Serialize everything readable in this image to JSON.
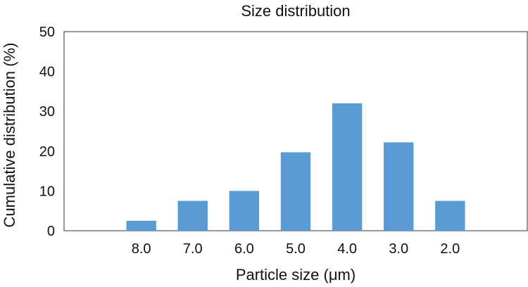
{
  "chart_data": {
    "type": "bar",
    "title": "Size distribution",
    "xlabel": "Particle size (μm)",
    "ylabel": "Cumulative distribution (%)",
    "categories": [
      "8.0",
      "7.0",
      "6.0",
      "5.0",
      "4.0",
      "3.0",
      "2.0"
    ],
    "values": [
      2.5,
      7.5,
      10,
      19.7,
      32,
      22.2,
      7.5
    ],
    "ylim": [
      0,
      50
    ],
    "yticks": [
      "0",
      "10",
      "20",
      "30",
      "40",
      "50"
    ],
    "grid": false,
    "bar_color": "#5b9bd5",
    "axis_color": "#333333"
  }
}
